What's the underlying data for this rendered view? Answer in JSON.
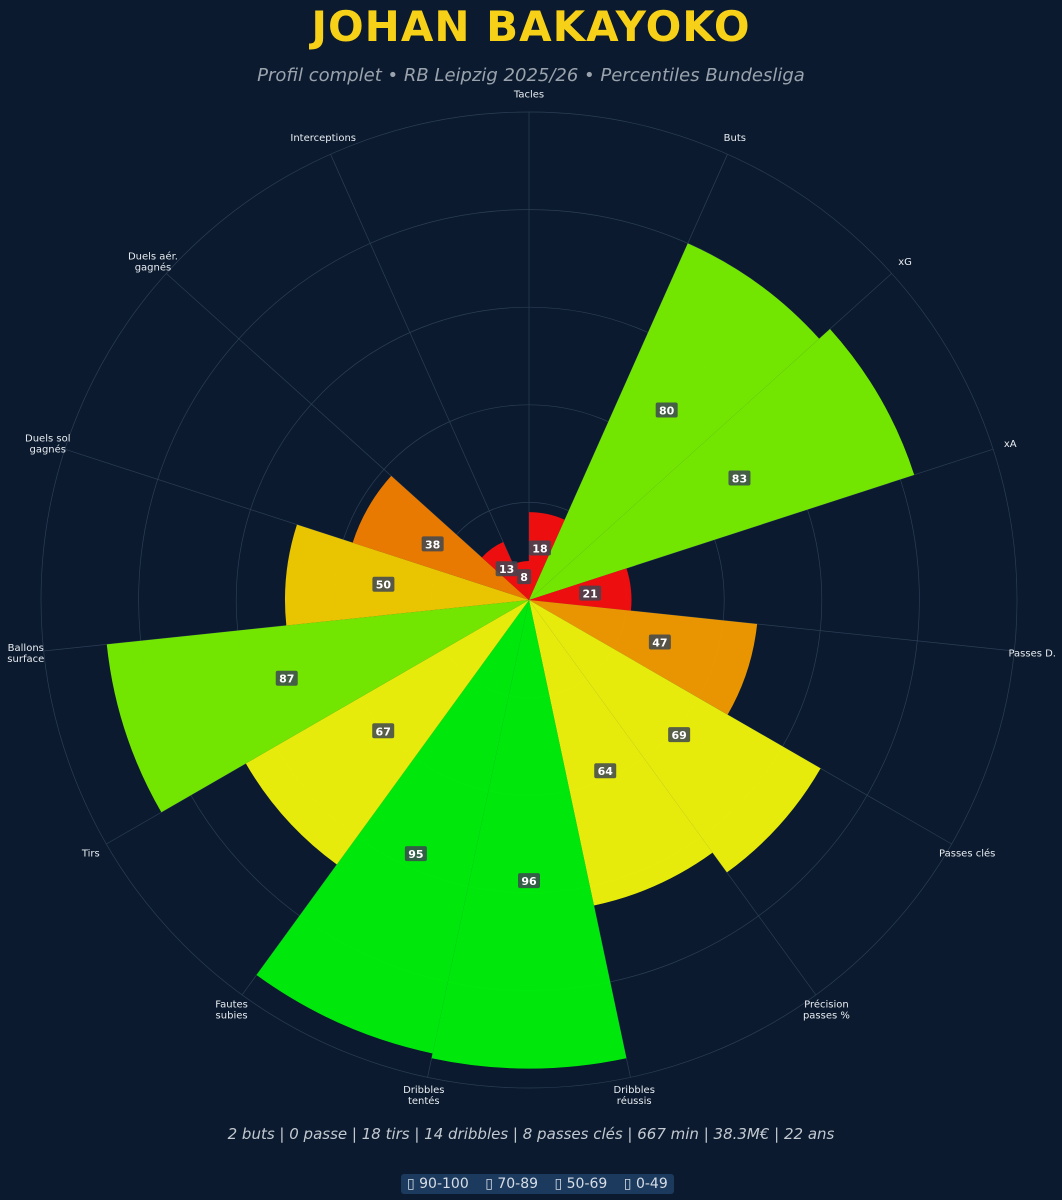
{
  "title": "JOHAN BAKAYOKO",
  "subtitle": "Profil complet • RB Leipzig 2025/26 • Percentiles Bundesliga",
  "stats_line": "2 buts | 0 passe | 18 tirs | 14 dribbles | 8 passes clés | 667 min | 38.3M€ | 22 ans",
  "legend": {
    "items": [
      "▯ 90-100",
      "▯ 70-89",
      "▯ 50-69",
      "▯ 0-49"
    ]
  },
  "colors": {
    "background": "#0b1a2e",
    "title": "#f7d117",
    "grid": "#2c3e55",
    "axis_label": "#e8ecf1",
    "value_label_bg": "#3d4752"
  },
  "chart_data": {
    "type": "polar_bar",
    "title": "",
    "rlim": [
      0,
      100
    ],
    "grid": true,
    "start_angle_deg": 0,
    "direction": "clockwise",
    "categories": [
      "Tacles",
      "Buts",
      "xG",
      "xA",
      "Passes D.",
      "Passes clés",
      "Précision\npasses %",
      "Dribbles\nréussis",
      "Dribbles\ntentés",
      "Fautes\nsubies",
      "Tirs",
      "Ballons\nsurface",
      "Duels sol\ngagnés",
      "Duels aér.\ngagnés",
      "Interceptions"
    ],
    "values": [
      18,
      80,
      83,
      21,
      47,
      69,
      64,
      96,
      95,
      67,
      87,
      50,
      38,
      13,
      8
    ],
    "colors": [
      "#f50f0f",
      "#76ec00",
      "#76ec00",
      "#f50f0f",
      "#f09a00",
      "#eef30a",
      "#eef30a",
      "#00f00a",
      "#00f00a",
      "#eef30a",
      "#76ec00",
      "#f0ca00",
      "#f07d00",
      "#f50f0f",
      "#f50f0f"
    ]
  }
}
